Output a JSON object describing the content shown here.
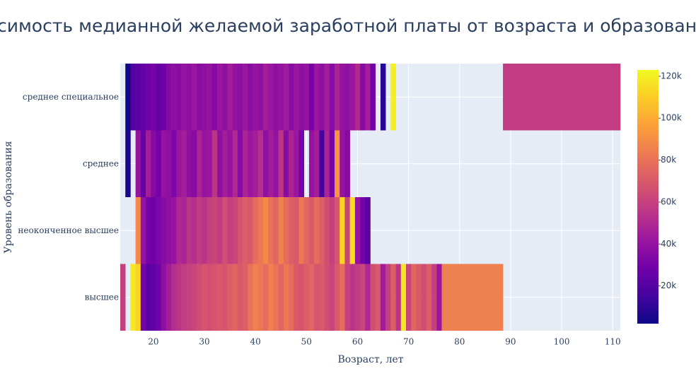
{
  "chart_data": {
    "type": "heatmap",
    "title": "Зависимость медианной желаемой заработной платы от возраста и образования",
    "x_label": "Возраст, лет",
    "y_label": "Уровень образования",
    "x": [
      14,
      15,
      16,
      17,
      18,
      19,
      20,
      21,
      22,
      23,
      24,
      25,
      26,
      27,
      28,
      29,
      30,
      31,
      32,
      33,
      34,
      35,
      36,
      37,
      38,
      39,
      40,
      41,
      42,
      43,
      44,
      45,
      46,
      47,
      48,
      49,
      50,
      51,
      52,
      53,
      54,
      55,
      56,
      57,
      58,
      59,
      60,
      61,
      62,
      63,
      64,
      65,
      66,
      67,
      68,
      69,
      70,
      71,
      72,
      73,
      74,
      75,
      76,
      77,
      100
    ],
    "categories": [
      "высшее",
      "неоконченное высшее",
      "среднее",
      "среднее специальное"
    ],
    "z": [
      [
        60000,
        null,
        118000,
        112000,
        30000,
        22000,
        24000,
        28000,
        38000,
        45000,
        52000,
        55000,
        58000,
        60000,
        62000,
        65000,
        68000,
        66000,
        68000,
        70000,
        68000,
        72000,
        75000,
        70000,
        72000,
        80000,
        85000,
        82000,
        78000,
        85000,
        80000,
        75000,
        82000,
        78000,
        70000,
        68000,
        72000,
        75000,
        68000,
        70000,
        65000,
        62000,
        70000,
        78000,
        60000,
        55000,
        58000,
        62000,
        50000,
        65000,
        70000,
        45000,
        60000,
        72000,
        55000,
        118000,
        62000,
        75000,
        70000,
        65000,
        72000,
        60000,
        42000,
        85000,
        null
      ],
      [
        null,
        null,
        null,
        88000,
        40000,
        30000,
        28000,
        32000,
        35000,
        38000,
        40000,
        50000,
        48000,
        55000,
        52000,
        58000,
        55000,
        60000,
        62000,
        58000,
        65000,
        60000,
        62000,
        68000,
        72000,
        70000,
        78000,
        82000,
        88000,
        80000,
        75000,
        85000,
        78000,
        72000,
        70000,
        82000,
        75000,
        70000,
        78000,
        72000,
        65000,
        60000,
        68000,
        112000,
        62000,
        115000,
        40000,
        30000,
        22000,
        null,
        null,
        null,
        null,
        null,
        null,
        null,
        null,
        null,
        null,
        null,
        null,
        null,
        null,
        null,
        null
      ],
      [
        null,
        5000,
        null,
        40000,
        25000,
        45000,
        35000,
        30000,
        40000,
        38000,
        32000,
        42000,
        45000,
        38000,
        35000,
        48000,
        40000,
        42000,
        55000,
        38000,
        45000,
        40000,
        50000,
        35000,
        48000,
        42000,
        45000,
        52000,
        38000,
        45000,
        40000,
        55000,
        35000,
        48000,
        42000,
        30000,
        null,
        40000,
        45000,
        15000,
        48000,
        30000,
        92000,
        40000,
        35000,
        null,
        null,
        null,
        null,
        null,
        null,
        null,
        null,
        null,
        null,
        null,
        null,
        null,
        null,
        null,
        null,
        null,
        null,
        null,
        null
      ],
      [
        null,
        3000,
        20000,
        22000,
        25000,
        28000,
        30000,
        25000,
        28000,
        35000,
        38000,
        36000,
        40000,
        38000,
        42000,
        36000,
        38000,
        40000,
        35000,
        42000,
        38000,
        45000,
        40000,
        38000,
        42000,
        36000,
        40000,
        38000,
        45000,
        42000,
        38000,
        40000,
        44000,
        36000,
        42000,
        38000,
        40000,
        30000,
        42000,
        38000,
        45000,
        36000,
        48000,
        40000,
        38000,
        42000,
        50000,
        35000,
        45000,
        28000,
        null,
        8000,
        null,
        120000,
        null,
        null,
        null,
        null,
        null,
        null,
        null,
        null,
        null,
        null,
        58000
      ]
    ],
    "zlim": [
      2000,
      123000
    ],
    "xlim": [
      13.5,
      111.5
    ],
    "xticks": [
      20,
      30,
      40,
      50,
      60,
      70,
      80,
      90,
      100,
      110
    ],
    "colorbar_ticks": [
      {
        "value": 20000,
        "label": "20k"
      },
      {
        "value": 40000,
        "label": "40k"
      },
      {
        "value": 60000,
        "label": "60k"
      },
      {
        "value": 80000,
        "label": "80k"
      },
      {
        "value": 100000,
        "label": "100k"
      },
      {
        "value": 120000,
        "label": "120k"
      }
    ],
    "colorscale": [
      "#0d0887",
      "#46039f",
      "#7201a8",
      "#9c179e",
      "#bd3786",
      "#d8576b",
      "#ed7953",
      "#fb9f3a",
      "#fdca26",
      "#f0f921"
    ],
    "grid": true
  }
}
